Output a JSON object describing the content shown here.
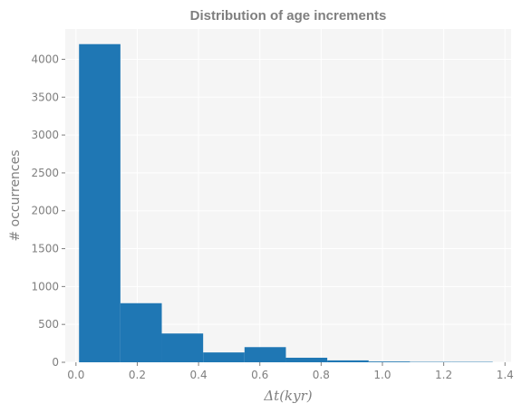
{
  "chart_data": {
    "type": "bar",
    "title": "Distribution of age increments",
    "xlabel": "Δt(kyr)",
    "ylabel": "# occurrences",
    "bin_edges": [
      0.01,
      0.145,
      0.28,
      0.415,
      0.55,
      0.685,
      0.82,
      0.955,
      1.09,
      1.225,
      1.36
    ],
    "values": [
      4200,
      780,
      380,
      130,
      200,
      60,
      25,
      10,
      5,
      5
    ],
    "xlim": [
      -0.035,
      1.42
    ],
    "ylim": [
      0,
      4400
    ],
    "xticks": [
      0.0,
      0.2,
      0.4,
      0.6,
      0.8,
      1.0,
      1.2,
      1.4
    ],
    "xtick_labels": [
      "0.0",
      "0.2",
      "0.4",
      "0.6",
      "0.8",
      "1.0",
      "1.2",
      "1.4"
    ],
    "yticks": [
      0,
      500,
      1000,
      1500,
      2000,
      2500,
      3000,
      3500,
      4000
    ],
    "ytick_labels": [
      "0",
      "500",
      "1000",
      "1500",
      "2000",
      "2500",
      "3000",
      "3500",
      "4000"
    ],
    "grid": true,
    "colors": {
      "bar": "#1f77b4",
      "background": "#f5f5f5",
      "grid": "#ffffff",
      "text": "#7f7f7f"
    }
  }
}
